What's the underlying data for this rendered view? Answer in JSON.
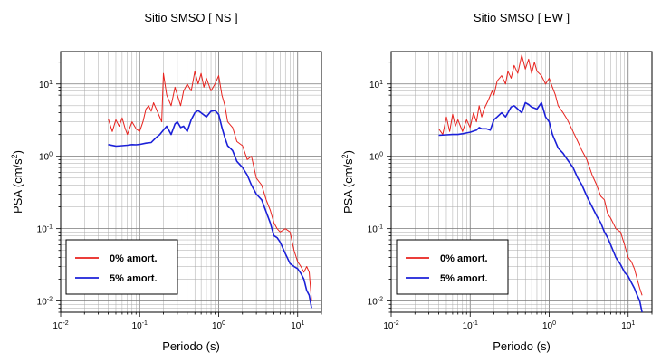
{
  "chart_data": [
    {
      "type": "line",
      "title": "Sitio SMSO [ NS ]",
      "xlabel": "Periodo (s)",
      "ylabel_main": "PSA (cm/s",
      "ylabel_sup": "2",
      "ylabel_close": ")",
      "xscale": "log",
      "yscale": "log",
      "xlim": [
        0.01,
        20
      ],
      "ylim": [
        0.007,
        28
      ],
      "grid": true,
      "legend_position": "bottom-left",
      "x_ticks": [
        {
          "base": "10",
          "exp": "-2"
        },
        {
          "base": "10",
          "exp": "-1"
        },
        {
          "base": "10",
          "exp": "0"
        },
        {
          "base": "10",
          "exp": "1"
        }
      ],
      "y_ticks": [
        {
          "base": "10",
          "exp": "-2"
        },
        {
          "base": "10",
          "exp": "-1"
        },
        {
          "base": "10",
          "exp": "0"
        },
        {
          "base": "10",
          "exp": "1"
        }
      ],
      "series": [
        {
          "name": "0% amort.",
          "color": "#e8231e",
          "x": [
            0.04,
            0.045,
            0.05,
            0.055,
            0.06,
            0.065,
            0.07,
            0.08,
            0.09,
            0.1,
            0.11,
            0.12,
            0.13,
            0.14,
            0.15,
            0.17,
            0.19,
            0.2,
            0.22,
            0.25,
            0.28,
            0.3,
            0.33,
            0.36,
            0.4,
            0.45,
            0.5,
            0.55,
            0.6,
            0.65,
            0.7,
            0.8,
            0.9,
            1.0,
            1.1,
            1.2,
            1.3,
            1.5,
            1.7,
            2.0,
            2.3,
            2.6,
            3.0,
            3.5,
            4.0,
            4.5,
            5.0,
            5.5,
            6.0,
            7.0,
            8.0,
            9.0,
            10.0,
            11.0,
            12.0,
            13.0,
            14.0,
            15.0
          ],
          "y": [
            3.3,
            2.2,
            3.2,
            2.6,
            3.4,
            2.5,
            2.0,
            3.0,
            2.4,
            2.2,
            3.0,
            4.5,
            5.0,
            4.2,
            5.5,
            4.0,
            3.0,
            14.0,
            7.0,
            5.0,
            9.0,
            7.0,
            5.0,
            8.0,
            10.0,
            8.0,
            15.0,
            10.0,
            14.0,
            9.0,
            12.0,
            8.0,
            10.0,
            13.0,
            7.0,
            5.0,
            3.0,
            2.5,
            1.6,
            1.4,
            0.9,
            1.0,
            0.5,
            0.4,
            0.25,
            0.18,
            0.12,
            0.1,
            0.09,
            0.1,
            0.09,
            0.05,
            0.035,
            0.03,
            0.025,
            0.03,
            0.025,
            0.01
          ]
        },
        {
          "name": "5% amort.",
          "color": "#1b20d8",
          "x": [
            0.04,
            0.05,
            0.06,
            0.07,
            0.08,
            0.09,
            0.1,
            0.12,
            0.14,
            0.16,
            0.18,
            0.2,
            0.22,
            0.25,
            0.28,
            0.3,
            0.33,
            0.36,
            0.4,
            0.45,
            0.5,
            0.55,
            0.6,
            0.7,
            0.8,
            0.9,
            1.0,
            1.1,
            1.2,
            1.3,
            1.5,
            1.7,
            2.0,
            2.3,
            2.6,
            3.0,
            3.5,
            4.0,
            4.5,
            5.0,
            5.5,
            6.0,
            7.0,
            8.0,
            9.0,
            10.0,
            11.0,
            12.0,
            13.0,
            14.0,
            15.0
          ],
          "y": [
            1.45,
            1.38,
            1.4,
            1.42,
            1.45,
            1.44,
            1.46,
            1.52,
            1.55,
            1.8,
            2.0,
            2.3,
            2.6,
            2.0,
            2.8,
            3.0,
            2.5,
            2.6,
            2.2,
            3.2,
            4.0,
            4.3,
            4.0,
            3.5,
            4.2,
            4.3,
            3.8,
            2.5,
            1.8,
            1.4,
            1.2,
            0.85,
            0.7,
            0.55,
            0.4,
            0.3,
            0.25,
            0.17,
            0.12,
            0.08,
            0.075,
            0.065,
            0.045,
            0.033,
            0.03,
            0.028,
            0.024,
            0.02,
            0.014,
            0.012,
            0.008
          ]
        }
      ]
    },
    {
      "type": "line",
      "title": "Sitio SMSO [ EW ]",
      "xlabel": "Periodo (s)",
      "ylabel_main": "PSA (cm/s",
      "ylabel_sup": "2",
      "ylabel_close": ")",
      "xscale": "log",
      "yscale": "log",
      "xlim": [
        0.01,
        20
      ],
      "ylim": [
        0.007,
        28
      ],
      "grid": true,
      "legend_position": "bottom-left",
      "x_ticks": [
        {
          "base": "10",
          "exp": "-2"
        },
        {
          "base": "10",
          "exp": "-1"
        },
        {
          "base": "10",
          "exp": "0"
        },
        {
          "base": "10",
          "exp": "1"
        }
      ],
      "y_ticks": [
        {
          "base": "10",
          "exp": "-2"
        },
        {
          "base": "10",
          "exp": "-1"
        },
        {
          "base": "10",
          "exp": "0"
        },
        {
          "base": "10",
          "exp": "1"
        }
      ],
      "series": [
        {
          "name": "0% amort.",
          "color": "#e8231e",
          "x": [
            0.04,
            0.045,
            0.05,
            0.055,
            0.06,
            0.065,
            0.07,
            0.08,
            0.09,
            0.1,
            0.11,
            0.12,
            0.13,
            0.14,
            0.15,
            0.17,
            0.19,
            0.2,
            0.22,
            0.25,
            0.28,
            0.3,
            0.33,
            0.36,
            0.4,
            0.45,
            0.5,
            0.55,
            0.6,
            0.65,
            0.7,
            0.8,
            0.9,
            1.0,
            1.1,
            1.2,
            1.3,
            1.5,
            1.7,
            2.0,
            2.3,
            2.6,
            3.0,
            3.5,
            4.0,
            4.5,
            5.0,
            5.5,
            6.0,
            7.0,
            8.0,
            9.0,
            10.0,
            11.0,
            12.0,
            13.0,
            14.0,
            15.0
          ],
          "y": [
            2.4,
            2.0,
            3.5,
            2.2,
            3.8,
            2.6,
            3.2,
            2.2,
            3.2,
            2.5,
            4.0,
            3.0,
            5.0,
            3.5,
            4.5,
            6.0,
            8.0,
            7.0,
            11.0,
            13.0,
            10.0,
            15.0,
            12.0,
            18.0,
            14.0,
            25.0,
            16.0,
            22.0,
            14.0,
            20.0,
            15.0,
            13.0,
            10.0,
            12.0,
            9.0,
            7.0,
            5.0,
            4.0,
            3.2,
            2.2,
            1.6,
            1.2,
            0.9,
            0.55,
            0.4,
            0.28,
            0.25,
            0.16,
            0.14,
            0.1,
            0.09,
            0.06,
            0.04,
            0.035,
            0.028,
            0.02,
            0.015,
            0.012
          ]
        },
        {
          "name": "5% amort.",
          "color": "#1b20d8",
          "x": [
            0.04,
            0.05,
            0.06,
            0.07,
            0.08,
            0.09,
            0.1,
            0.12,
            0.13,
            0.14,
            0.16,
            0.18,
            0.2,
            0.22,
            0.25,
            0.28,
            0.3,
            0.33,
            0.36,
            0.4,
            0.45,
            0.5,
            0.55,
            0.6,
            0.7,
            0.8,
            0.9,
            1.0,
            1.1,
            1.2,
            1.3,
            1.5,
            1.7,
            2.0,
            2.3,
            2.6,
            3.0,
            3.5,
            4.0,
            4.5,
            5.0,
            5.5,
            6.0,
            7.0,
            8.0,
            9.0,
            10.0,
            11.0,
            12.0,
            13.0,
            14.0,
            15.0
          ],
          "y": [
            1.95,
            1.98,
            2.0,
            2.0,
            2.05,
            2.1,
            2.15,
            2.3,
            2.5,
            2.4,
            2.4,
            2.3,
            3.2,
            3.5,
            4.0,
            3.5,
            4.0,
            4.8,
            5.0,
            4.5,
            4.0,
            5.5,
            5.2,
            4.8,
            4.5,
            5.5,
            3.5,
            3.0,
            2.0,
            1.6,
            1.3,
            1.1,
            0.9,
            0.7,
            0.5,
            0.4,
            0.28,
            0.2,
            0.15,
            0.12,
            0.09,
            0.075,
            0.06,
            0.04,
            0.032,
            0.025,
            0.022,
            0.018,
            0.015,
            0.012,
            0.01,
            0.007
          ]
        }
      ]
    }
  ]
}
